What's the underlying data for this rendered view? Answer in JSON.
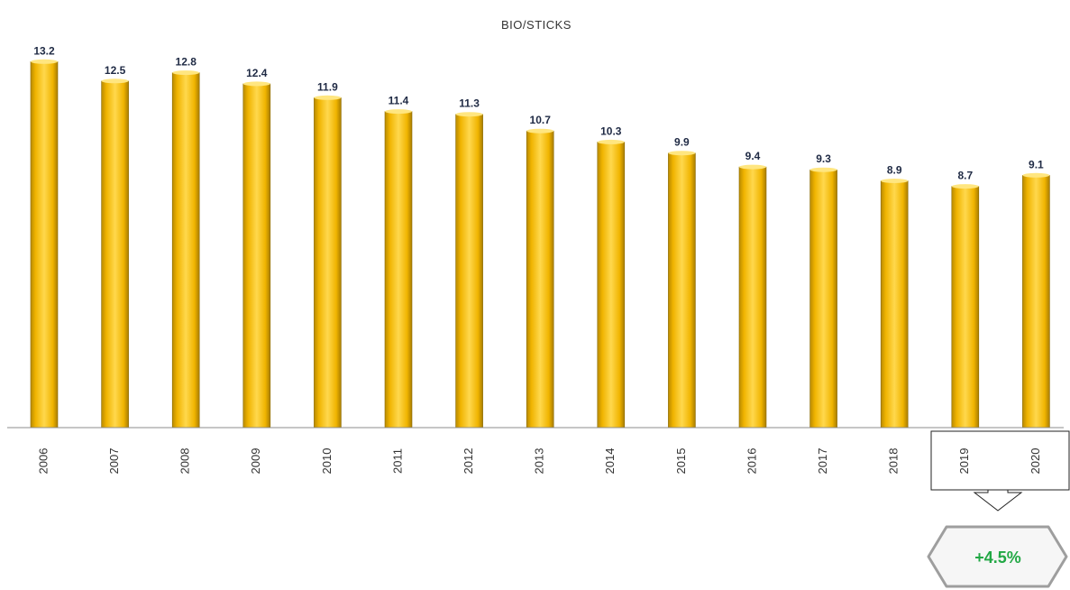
{
  "chart_data": {
    "type": "bar",
    "title": "BIO/STICKS",
    "categories": [
      "2006",
      "2007",
      "2008",
      "2009",
      "2010",
      "2011",
      "2012",
      "2013",
      "2014",
      "2015",
      "2016",
      "2017",
      "2018",
      "2019",
      "2020"
    ],
    "values": [
      13.2,
      12.5,
      12.8,
      12.4,
      11.9,
      11.4,
      11.3,
      10.7,
      10.3,
      9.9,
      9.4,
      9.3,
      8.9,
      8.7,
      9.1
    ],
    "value_labels": [
      "13.2",
      "12.5",
      "12.8",
      "12.4",
      "11.9",
      "11.4",
      "11.3",
      "10.7",
      "10.3",
      "9.9",
      "9.4",
      "9.3",
      "8.9",
      "8.7",
      "9.1"
    ],
    "ylim": [
      0,
      15
    ],
    "grid": false,
    "bar_color": "#FFC000",
    "highlight_categories": [
      "2019",
      "2020"
    ],
    "annotation": {
      "text": "+4.5%",
      "color": "#22a845"
    }
  }
}
